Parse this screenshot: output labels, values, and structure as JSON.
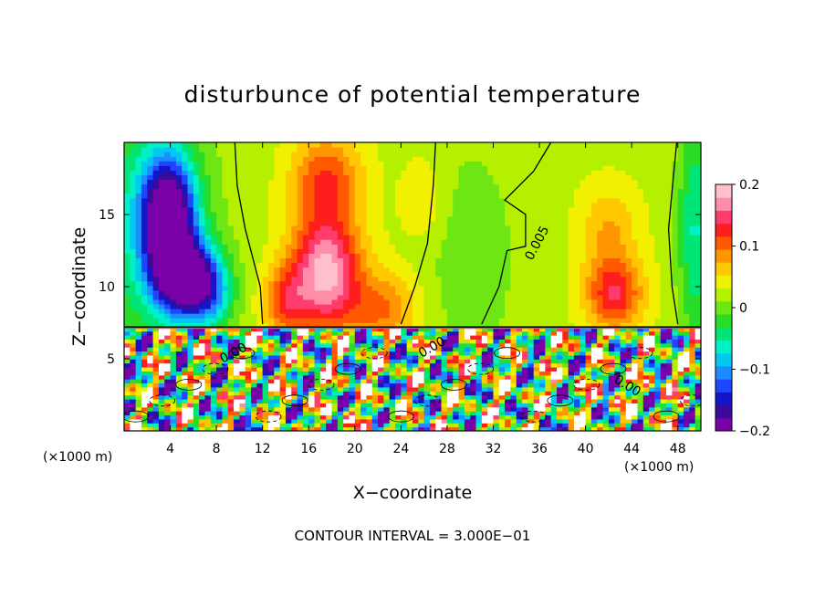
{
  "chart_data": {
    "type": "heatmap",
    "title": "disturbunce of potential temperature",
    "xlabel": "X−coordinate",
    "ylabel": "Z−coordinate",
    "x_unit_label": "(×1000 m)",
    "x_unit_label_right": "(×1000 m)",
    "xlim": [
      0,
      50
    ],
    "ylim": [
      0,
      20
    ],
    "x_ticks": [
      4,
      8,
      12,
      16,
      20,
      24,
      28,
      32,
      36,
      40,
      44,
      48
    ],
    "y_ticks": [
      5,
      10,
      15
    ],
    "colorbar": {
      "range": [
        -0.2,
        0.2
      ],
      "ticks": [
        -0.2,
        -0.1,
        0,
        0.1,
        0.2
      ],
      "tick_labels": [
        "−0.2",
        "−0.1",
        "0",
        "0.1",
        "0.2"
      ],
      "colors": [
        "#7a00a8",
        "#3a0a9c",
        "#1414c8",
        "#1e46ff",
        "#1e8cff",
        "#00c8f0",
        "#00f0c8",
        "#00e676",
        "#28dc28",
        "#6ee614",
        "#b4f000",
        "#f0f000",
        "#ffc800",
        "#ff9600",
        "#ff5a00",
        "#ff1e1e",
        "#ff3c6e",
        "#ff8ca8",
        "#ffc0cc"
      ]
    },
    "contour_labels": [
      "0.005",
      "0.00",
      "0.00",
      "0.00"
    ],
    "contour_interval_text": "CONTOUR INTERVAL = 3.000E−01",
    "blobs": [
      {
        "x": 0,
        "z": 14,
        "v": -0.055,
        "rx": 7,
        "rz": 12
      },
      {
        "x": 3.8,
        "z": 14.5,
        "v": -0.26,
        "rx": 2.4,
        "rz": 4.5
      },
      {
        "x": 5.5,
        "z": 10.5,
        "v": -0.2,
        "rx": 2.5,
        "rz": 2.5
      },
      {
        "x": 7.5,
        "z": 9.5,
        "v": -0.08,
        "rx": 2,
        "rz": 2.5
      },
      {
        "x": 17.5,
        "z": 11,
        "v": 0.165,
        "rx": 3,
        "rz": 4
      },
      {
        "x": 17.5,
        "z": 17.5,
        "v": 0.09,
        "rx": 3,
        "rz": 3
      },
      {
        "x": 22.5,
        "z": 8.5,
        "v": 0.07,
        "rx": 3,
        "rz": 2.5
      },
      {
        "x": 14,
        "z": 9,
        "v": 0.08,
        "rx": 2,
        "rz": 2.5
      },
      {
        "x": 30,
        "z": 12,
        "v": -0.03,
        "rx": 4,
        "rz": 8
      },
      {
        "x": 42.5,
        "z": 9.5,
        "v": 0.11,
        "rx": 2.5,
        "rz": 2.5
      },
      {
        "x": 42,
        "z": 14,
        "v": 0.05,
        "rx": 2.5,
        "rz": 3
      },
      {
        "x": 49.5,
        "z": 14,
        "v": -0.08,
        "rx": 1.5,
        "rz": 8
      },
      {
        "x": 26,
        "z": 16,
        "v": 0.03,
        "rx": 2,
        "rz": 3
      }
    ],
    "lower_layer_top_z": 7.2
  }
}
